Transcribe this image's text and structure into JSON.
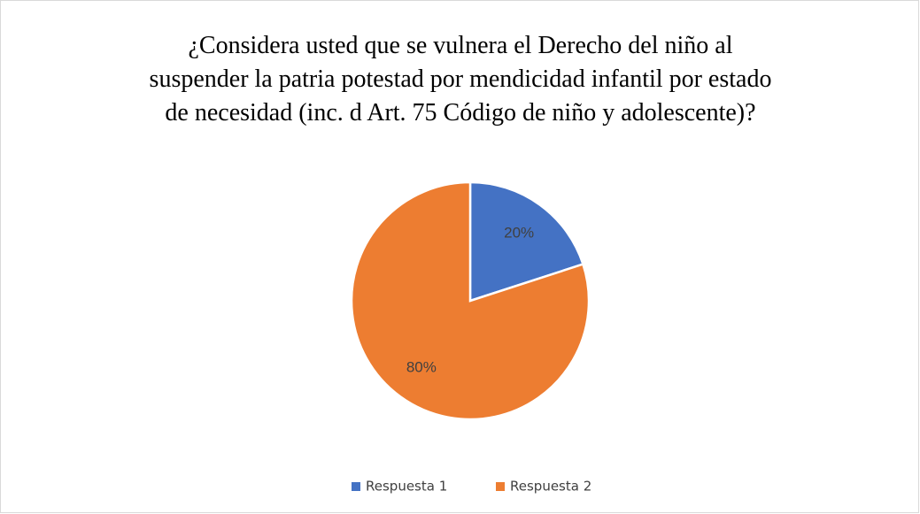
{
  "chart_data": {
    "type": "pie",
    "title": [
      "¿Considera usted que se vulnera el Derecho del niño al",
      "suspender la patria potestad por mendicidad infantil por estado",
      "de necesidad (inc. d Art. 75 Código de niño y adolescente)?"
    ],
    "categories": [
      "Respuesta 1",
      "Respuesta 2"
    ],
    "values": [
      20,
      80
    ],
    "value_labels": [
      "20%",
      "80%"
    ],
    "colors": [
      "#4472c4",
      "#ed7d31"
    ],
    "legend": "bottom"
  }
}
